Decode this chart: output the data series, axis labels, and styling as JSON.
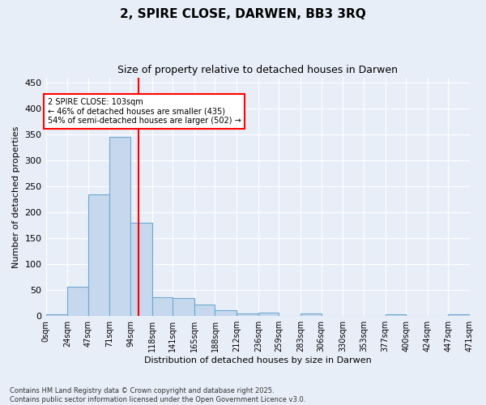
{
  "title": "2, SPIRE CLOSE, DARWEN, BB3 3RQ",
  "subtitle": "Size of property relative to detached houses in Darwen",
  "xlabel": "Distribution of detached houses by size in Darwen",
  "ylabel": "Number of detached properties",
  "bin_edges": [
    0,
    24,
    47,
    71,
    94,
    118,
    141,
    165,
    188,
    212,
    236,
    259,
    283,
    306,
    330,
    353,
    377,
    400,
    424,
    447,
    471
  ],
  "bar_heights": [
    4,
    56,
    235,
    345,
    180,
    37,
    35,
    22,
    12,
    5,
    6,
    0,
    5,
    0,
    0,
    0,
    3,
    0,
    0,
    3
  ],
  "bar_color": "#c5d8ed",
  "bar_edge_color": "#6fa8d0",
  "vline_x": 103,
  "vline_color": "red",
  "annotation_text": "2 SPIRE CLOSE: 103sqm\n← 46% of detached houses are smaller (435)\n54% of semi-detached houses are larger (502) →",
  "annotation_box_color": "white",
  "annotation_box_edge": "red",
  "ylim": [
    0,
    460
  ],
  "xlim": [
    0,
    471
  ],
  "tick_labels": [
    "0sqm",
    "24sqm",
    "47sqm",
    "71sqm",
    "94sqm",
    "118sqm",
    "141sqm",
    "165sqm",
    "188sqm",
    "212sqm",
    "236sqm",
    "259sqm",
    "283sqm",
    "306sqm",
    "330sqm",
    "353sqm",
    "377sqm",
    "400sqm",
    "424sqm",
    "447sqm",
    "471sqm"
  ],
  "footer_text": "Contains HM Land Registry data © Crown copyright and database right 2025.\nContains public sector information licensed under the Open Government Licence v3.0.",
  "bg_color": "#e8eef8",
  "grid_color": "white",
  "title_fontsize": 11,
  "subtitle_fontsize": 9,
  "ylabel_fontsize": 8,
  "xlabel_fontsize": 8,
  "tick_fontsize": 7,
  "footer_fontsize": 6
}
